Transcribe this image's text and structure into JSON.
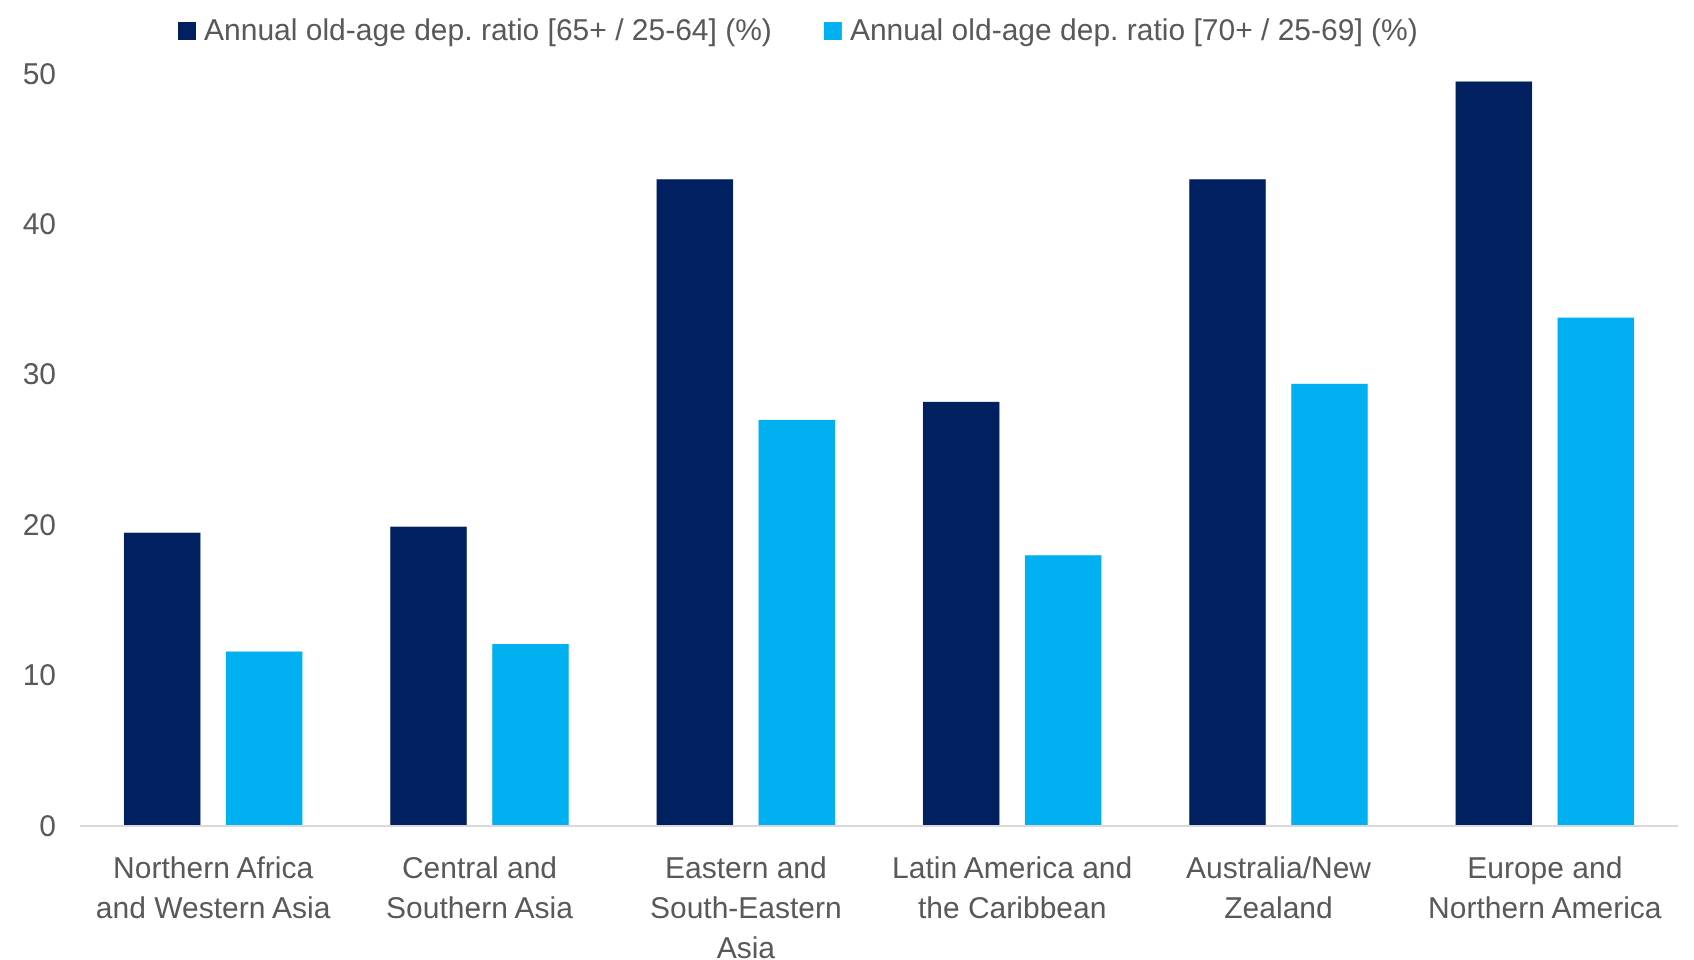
{
  "chart_data": {
    "type": "bar",
    "categories": [
      "Northern Africa and Western Asia",
      "Central and Southern Asia",
      "Eastern and South-Eastern Asia",
      "Latin America and the Caribbean",
      "Australia/New Zealand",
      "Europe and Northern America"
    ],
    "series": [
      {
        "name": "Annual old-age dep. ratio [65+ / 25-64] (%)",
        "color": "#002060",
        "values": [
          19.5,
          19.9,
          43.0,
          28.2,
          43.0,
          49.5
        ]
      },
      {
        "name": "Annual old-age dep. ratio [70+ / 25-69] (%)",
        "color": "#00b0f0",
        "values": [
          11.6,
          12.1,
          27.0,
          18.0,
          29.4,
          33.8
        ]
      }
    ],
    "ylim": [
      0,
      50
    ],
    "yticks": [
      0,
      10,
      20,
      30,
      40,
      50
    ],
    "grid": false,
    "legend": "top"
  }
}
